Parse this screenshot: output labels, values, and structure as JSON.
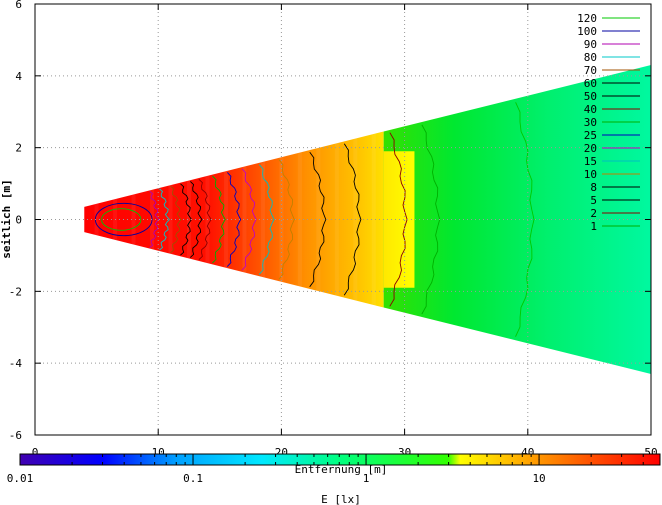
{
  "chart_data": {
    "type": "heatmap",
    "xlabel": "Entfernung [m]",
    "ylabel": "seitlich [m]",
    "xlim": [
      0,
      50
    ],
    "ylim": [
      -6,
      6
    ],
    "x_ticks": [
      "0",
      "10",
      "20",
      "30",
      "40",
      "50"
    ],
    "y_ticks": [
      "-6",
      "-4",
      "-2",
      "0",
      "2",
      "4",
      "6"
    ],
    "grid": true,
    "legend_position": "top-right",
    "contour_levels": [
      {
        "label": "120",
        "color": "#00c800"
      },
      {
        "label": "100",
        "color": "#0000a0"
      },
      {
        "label": "90",
        "color": "#b000b0"
      },
      {
        "label": "80",
        "color": "#00c8c8"
      },
      {
        "label": "70",
        "color": "#a05000"
      },
      {
        "label": "60",
        "color": "#000000"
      },
      {
        "label": "50",
        "color": "#000000"
      },
      {
        "label": "40",
        "color": "#8b0000"
      },
      {
        "label": "30",
        "color": "#00b000"
      },
      {
        "label": "25",
        "color": "#0000c0"
      },
      {
        "label": "20",
        "color": "#c000c0"
      },
      {
        "label": "15",
        "color": "#00c0c0"
      },
      {
        "label": "10",
        "color": "#c08000"
      },
      {
        "label": "8",
        "color": "#000000"
      },
      {
        "label": "5",
        "color": "#000000"
      },
      {
        "label": "2",
        "color": "#8b0000"
      },
      {
        "label": "1",
        "color": "#00b000"
      }
    ],
    "regions": [
      {
        "x_start": 4,
        "x_end": 28.3,
        "y_half_start": 0.35,
        "y_half_end": 2.45,
        "gradient": [
          [
            4,
            "#ff0000"
          ],
          [
            14,
            "#ff1000"
          ],
          [
            18,
            "#ff5000"
          ],
          [
            22,
            "#ff9000"
          ],
          [
            26,
            "#ffc000"
          ],
          [
            28.3,
            "#ffe000"
          ]
        ]
      },
      {
        "x_start": 28.3,
        "x_end": 50,
        "y_half_start": 2.45,
        "y_half_end": 4.3,
        "gradient": [
          [
            28.3,
            "#33e000"
          ],
          [
            34,
            "#00e830"
          ],
          [
            42,
            "#00f070"
          ],
          [
            50,
            "#00f8a0"
          ]
        ]
      },
      {
        "x_start": 28.3,
        "x_end": 30.8,
        "y_half_start": 1.9,
        "y_half_end": 1.9,
        "gradient": [
          [
            28.3,
            "#ffe800"
          ],
          [
            30.8,
            "#ffff00"
          ]
        ]
      }
    ],
    "colorbar": {
      "title": "E [lx]",
      "scale": "log",
      "range": [
        0.01,
        50
      ],
      "tick_labels": [
        "0.01",
        "0.1",
        "1",
        "10"
      ],
      "tick_values": [
        0.01,
        0.1,
        1,
        10
      ],
      "gradient": [
        [
          0.01,
          "#4000b0"
        ],
        [
          0.03,
          "#0000ff"
        ],
        [
          0.08,
          "#00a0ff"
        ],
        [
          0.25,
          "#00e8ff"
        ],
        [
          0.7,
          "#00ff80"
        ],
        [
          3,
          "#33ff00"
        ],
        [
          3.5,
          "#ffff00"
        ],
        [
          9,
          "#ffa000"
        ],
        [
          20,
          "#ff5000"
        ],
        [
          50,
          "#ff0000"
        ]
      ]
    }
  }
}
